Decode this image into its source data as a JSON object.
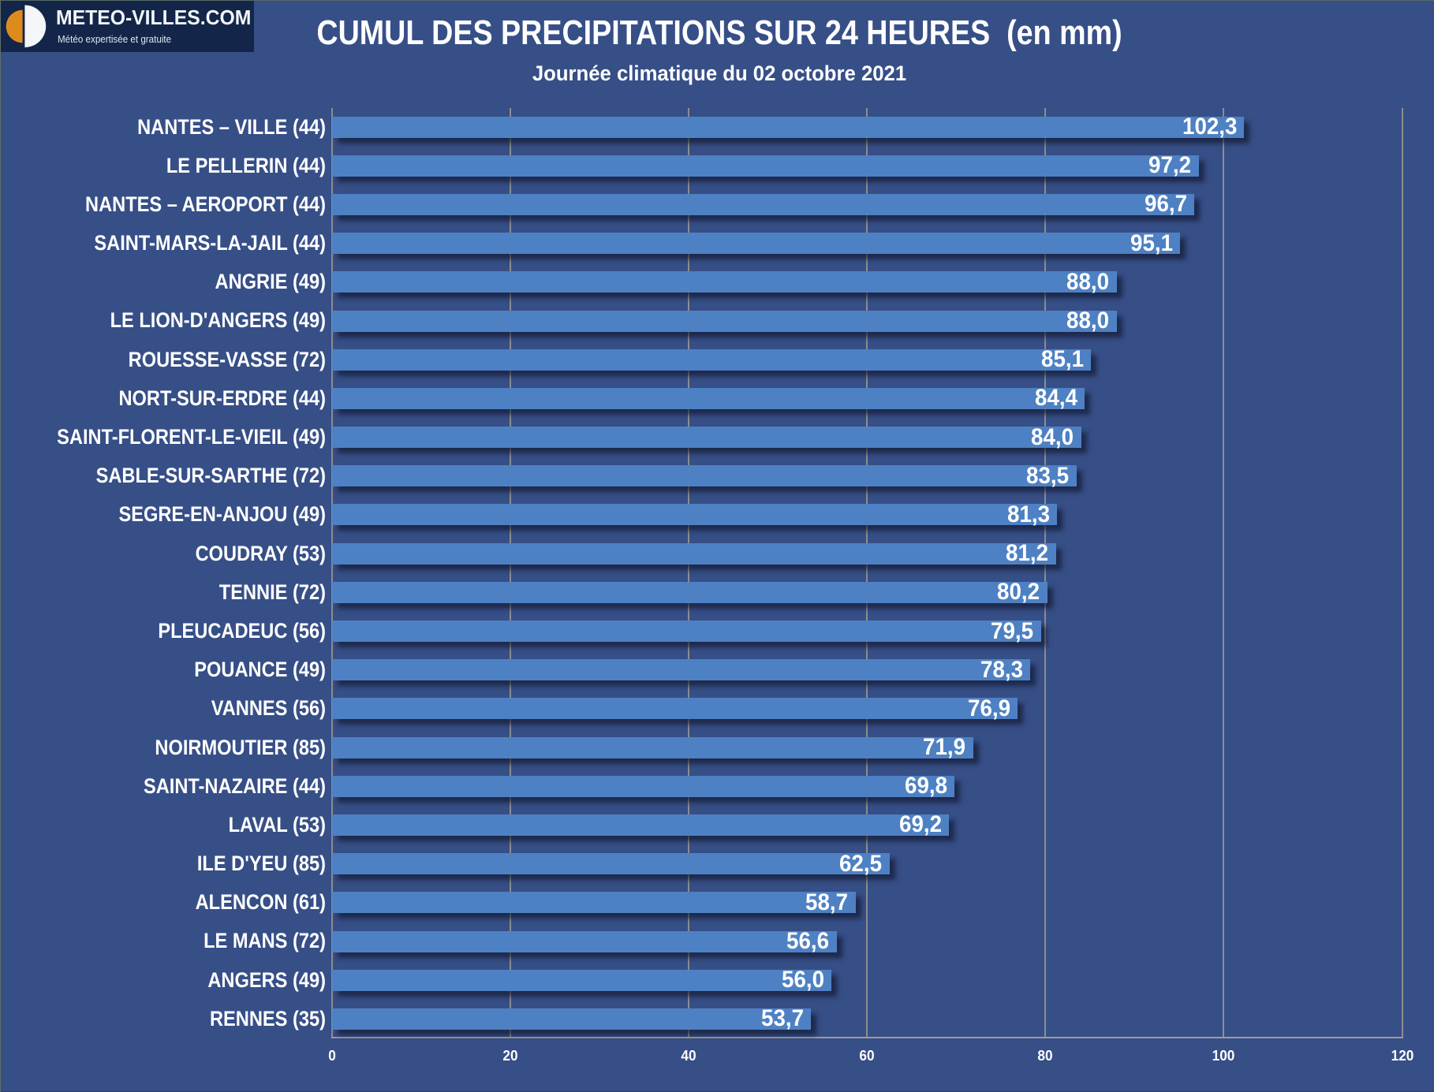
{
  "logo": {
    "brand": "METEO-VILLES.COM",
    "tagline": "Météo expertisée et gratuite"
  },
  "header": {
    "title": "CUMUL DES PRECIPITATIONS SUR 24 HEURES  (en mm)",
    "subtitle": "Journée climatique du 02 octobre 2021"
  },
  "chart_data": {
    "type": "bar",
    "orientation": "horizontal",
    "title": "CUMUL DES PRECIPITATIONS SUR 24 HEURES (en mm)",
    "subtitle": "Journée climatique du 02 octobre 2021",
    "categories": [
      "NANTES – VILLE (44)",
      "LE PELLERIN (44)",
      "NANTES – AEROPORT (44)",
      "SAINT-MARS-LA-JAIL (44)",
      "ANGRIE (49)",
      "LE LION-D'ANGERS (49)",
      "ROUESSE-VASSE (72)",
      "NORT-SUR-ERDRE (44)",
      "SAINT-FLORENT-LE-VIEIL (49)",
      "SABLE-SUR-SARTHE (72)",
      "SEGRE-EN-ANJOU (49)",
      "COUDRAY (53)",
      "TENNIE (72)",
      "PLEUCADEUC (56)",
      "POUANCE (49)",
      "VANNES (56)",
      "NOIRMOUTIER (85)",
      "SAINT-NAZAIRE (44)",
      "LAVAL (53)",
      "ILE D'YEU (85)",
      "ALENCON (61)",
      "LE MANS (72)",
      "ANGERS (49)",
      "RENNES (35)"
    ],
    "values": [
      102.3,
      97.2,
      96.7,
      95.1,
      88.0,
      88.0,
      85.1,
      84.4,
      84.0,
      83.5,
      81.3,
      81.2,
      80.2,
      79.5,
      78.3,
      76.9,
      71.9,
      69.8,
      69.2,
      62.5,
      58.7,
      56.6,
      56.0,
      53.7
    ],
    "decimal_separator": ",",
    "xlabel": "",
    "ylabel": "",
    "xlim": [
      0,
      120
    ],
    "x_ticks": [
      0,
      20,
      40,
      60,
      80,
      100,
      120
    ],
    "grid": true,
    "legend": false,
    "colors": {
      "background": "#374F87",
      "bar": "#4E81C3",
      "gridline": "#8C8E8F",
      "axis_line": "#9C9C9A",
      "text": "#FFFFFF",
      "logo_box": "#132649",
      "logo_orange": "#DD8C1C"
    }
  }
}
